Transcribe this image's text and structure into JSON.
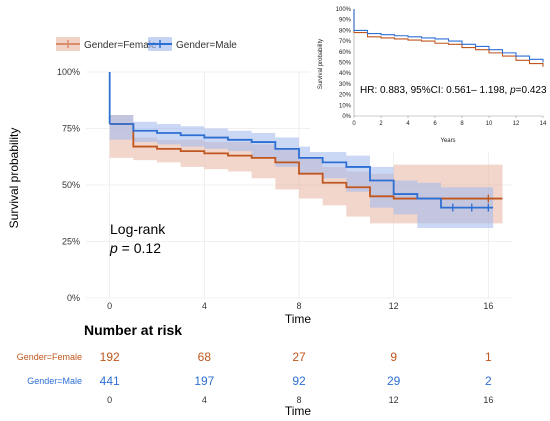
{
  "chart_data": {
    "type": "line",
    "subtype": "kaplan-meier",
    "legend": {
      "placement": "top-left",
      "entries": [
        "Gender=Female",
        "Gender=Male"
      ]
    },
    "xlabel": "Time",
    "ylabel": "Survival probability",
    "xlim": [
      -1,
      17
    ],
    "ylim": [
      0,
      1
    ],
    "x_ticks": [
      0,
      4,
      8,
      12,
      16
    ],
    "y_ticks": [
      0,
      0.25,
      0.5,
      0.75,
      1.0
    ],
    "y_tick_labels": [
      "0%",
      "25%",
      "50%",
      "75%",
      "100%"
    ],
    "series": [
      {
        "name": "Gender=Female",
        "color": "#c0561f",
        "band_color": "#e8b4a0",
        "x": [
          0,
          1,
          2,
          3,
          4,
          5,
          6,
          7,
          8,
          9,
          10,
          11,
          12,
          16.6
        ],
        "y": [
          0.77,
          0.67,
          0.66,
          0.65,
          0.64,
          0.63,
          0.62,
          0.6,
          0.55,
          0.51,
          0.49,
          0.45,
          0.44,
          0.44
        ],
        "lower": [
          0.7,
          0.62,
          0.61,
          0.6,
          0.58,
          0.57,
          0.56,
          0.53,
          0.48,
          0.44,
          0.41,
          0.36,
          0.33,
          0.33
        ],
        "upper": [
          0.81,
          0.71,
          0.7,
          0.7,
          0.69,
          0.69,
          0.68,
          0.66,
          0.62,
          0.58,
          0.56,
          0.55,
          0.59,
          0.59
        ],
        "censor_x": [
          16
        ]
      },
      {
        "name": "Gender=Male",
        "color": "#2e6fd4",
        "band_color": "#9fb8ee",
        "x": [
          0,
          1,
          2,
          3,
          4,
          5,
          6,
          7,
          8,
          9,
          10,
          11,
          12,
          13,
          14,
          16.2
        ],
        "y": [
          0.77,
          0.74,
          0.73,
          0.72,
          0.71,
          0.7,
          0.69,
          0.66,
          0.62,
          0.6,
          0.58,
          0.52,
          0.46,
          0.44,
          0.4,
          0.4
        ],
        "lower": [
          0.73,
          0.7,
          0.69,
          0.68,
          0.67,
          0.66,
          0.65,
          0.62,
          0.58,
          0.55,
          0.53,
          0.47,
          0.4,
          0.37,
          0.31,
          0.31
        ],
        "upper": [
          0.81,
          0.78,
          0.77,
          0.76,
          0.75,
          0.74,
          0.73,
          0.71,
          0.67,
          0.65,
          0.63,
          0.58,
          0.52,
          0.51,
          0.49,
          0.49
        ],
        "censor_x": [
          14.5,
          15.3,
          16
        ]
      }
    ],
    "start_point": {
      "x": 0,
      "y": 1.0
    },
    "annotation": {
      "line1": "Log-rank",
      "p_label": "p",
      "p_text": " = 0.12"
    },
    "risk_table": {
      "title": "Number at risk",
      "xlabel": "Time",
      "x_ticks": [
        0,
        4,
        8,
        12,
        16
      ],
      "rows": [
        {
          "label": "Gender=Female",
          "color": "#c0561f",
          "values": [
            "192",
            "68",
            "27",
            "9",
            "1"
          ]
        },
        {
          "label": "Gender=Male",
          "color": "#2e6fd4",
          "values": [
            "441",
            "197",
            "92",
            "29",
            "2"
          ]
        }
      ]
    },
    "inset": {
      "type": "line",
      "xlabel": "Years",
      "ylabel": "Survival probability",
      "xlim": [
        0,
        14
      ],
      "ylim": [
        0,
        1
      ],
      "x_ticks": [
        0,
        2,
        4,
        6,
        8,
        10,
        12,
        14
      ],
      "y_ticks": [
        0,
        0.1,
        0.2,
        0.3,
        0.4,
        0.5,
        0.6,
        0.7,
        0.8,
        0.9,
        1.0
      ],
      "y_tick_labels": [
        "0%",
        "10%",
        "20%",
        "30%",
        "40%",
        "50%",
        "60%",
        "70%",
        "80%",
        "90%",
        "100%"
      ],
      "annotation_text": "HR: 0.883, 95%CI: 0.561– 1.198, ",
      "annotation_p_label": "p",
      "annotation_p_text": "=0.423",
      "series": [
        {
          "name": "Female",
          "color": "#c0561f",
          "x": [
            0,
            0,
            1,
            2,
            3,
            4,
            5,
            6,
            7,
            8,
            9,
            10,
            11,
            12,
            13,
            14
          ],
          "y": [
            1.0,
            0.78,
            0.74,
            0.73,
            0.72,
            0.71,
            0.7,
            0.68,
            0.67,
            0.64,
            0.62,
            0.59,
            0.56,
            0.52,
            0.49,
            0.46
          ]
        },
        {
          "name": "Male",
          "color": "#2e6fd4",
          "x": [
            0,
            0,
            1,
            2,
            3,
            4,
            5,
            6,
            7,
            8,
            9,
            10,
            11,
            12,
            13,
            14
          ],
          "y": [
            1.0,
            0.8,
            0.77,
            0.76,
            0.75,
            0.74,
            0.73,
            0.72,
            0.7,
            0.67,
            0.65,
            0.62,
            0.59,
            0.56,
            0.53,
            0.5
          ]
        }
      ]
    }
  }
}
